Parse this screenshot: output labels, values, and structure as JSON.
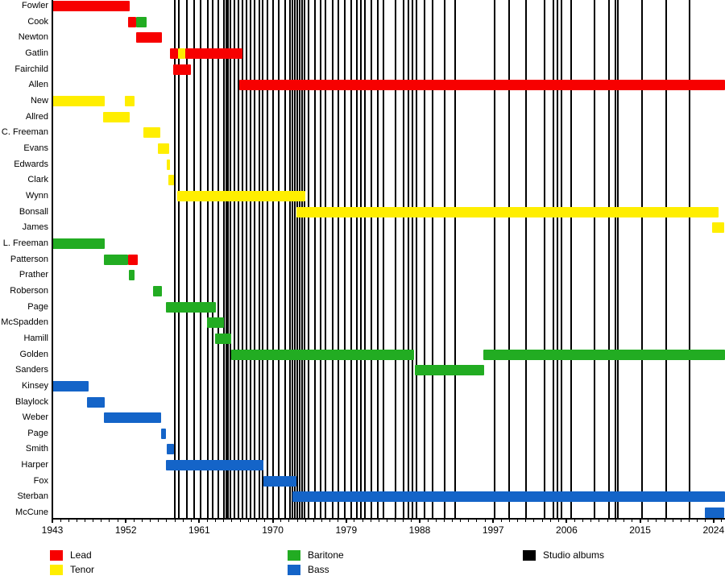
{
  "colors": {
    "lead": "#f70000",
    "tenor": "#ffee00",
    "baritone": "#22ac22",
    "bass": "#1464c8",
    "album": "#000000",
    "axis": "#000000"
  },
  "legend": {
    "items": [
      {
        "label": "Lead",
        "color_key": "lead",
        "col": 0,
        "row": 0
      },
      {
        "label": "Tenor",
        "color_key": "tenor",
        "col": 0,
        "row": 1
      },
      {
        "label": "Baritone",
        "color_key": "baritone",
        "col": 1,
        "row": 0
      },
      {
        "label": "Bass",
        "color_key": "bass",
        "col": 1,
        "row": 1
      },
      {
        "label": "Studio albums",
        "color_key": "album",
        "col": 2,
        "row": 0
      }
    ]
  },
  "chart_data": {
    "type": "timeline",
    "title": "",
    "xlabel": "",
    "ylabel": "",
    "axis": {
      "year_start": 1943,
      "year_end": 2025.4,
      "tick_interval": 1,
      "labeled_ticks": [
        1943,
        1952,
        1961,
        1970,
        1979,
        1988,
        1997,
        2006,
        2015,
        2024
      ]
    },
    "rows": [
      {
        "name": "Fowler",
        "segments": [
          {
            "start": 1943.0,
            "end": 1952.5,
            "part": "lead"
          }
        ]
      },
      {
        "name": "Cook",
        "segments": [
          {
            "start": 1952.3,
            "end": 1953.3,
            "part": "lead"
          },
          {
            "start": 1953.3,
            "end": 1954.5,
            "part": "baritone"
          }
        ]
      },
      {
        "name": "Newton",
        "segments": [
          {
            "start": 1953.3,
            "end": 1956.4,
            "part": "lead"
          }
        ]
      },
      {
        "name": "Gatlin",
        "segments": [
          {
            "start": 1957.4,
            "end": 1958.4,
            "part": "lead"
          },
          {
            "start": 1958.4,
            "end": 1959.3,
            "part": "tenor"
          },
          {
            "start": 1959.3,
            "end": 1966.3,
            "part": "lead"
          }
        ]
      },
      {
        "name": "Fairchild",
        "segments": [
          {
            "start": 1957.8,
            "end": 1960.0,
            "part": "lead"
          }
        ]
      },
      {
        "name": "Allen",
        "segments": [
          {
            "start": 1965.9,
            "end": 2025.4,
            "part": "lead"
          }
        ]
      },
      {
        "name": "New",
        "segments": [
          {
            "start": 1943.0,
            "end": 1949.4,
            "part": "tenor"
          },
          {
            "start": 1951.9,
            "end": 1953.1,
            "part": "tenor"
          }
        ]
      },
      {
        "name": "Allred",
        "segments": [
          {
            "start": 1949.2,
            "end": 1952.5,
            "part": "tenor"
          }
        ]
      },
      {
        "name": "C. Freeman",
        "segments": [
          {
            "start": 1954.2,
            "end": 1956.2,
            "part": "tenor"
          }
        ]
      },
      {
        "name": "Evans",
        "segments": [
          {
            "start": 1955.9,
            "end": 1957.3,
            "part": "tenor"
          }
        ]
      },
      {
        "name": "Edwards",
        "segments": [
          {
            "start": 1957.0,
            "end": 1957.4,
            "part": "tenor"
          }
        ]
      },
      {
        "name": "Clark",
        "segments": [
          {
            "start": 1957.2,
            "end": 1957.9,
            "part": "tenor"
          }
        ]
      },
      {
        "name": "Wynn",
        "segments": [
          {
            "start": 1958.3,
            "end": 1974.0,
            "part": "tenor"
          }
        ]
      },
      {
        "name": "Bonsall",
        "segments": [
          {
            "start": 1972.9,
            "end": 2024.6,
            "part": "tenor"
          }
        ]
      },
      {
        "name": "James",
        "segments": [
          {
            "start": 2023.8,
            "end": 2025.3,
            "part": "tenor"
          }
        ]
      },
      {
        "name": "L. Freeman",
        "segments": [
          {
            "start": 1943.0,
            "end": 1949.4,
            "part": "baritone"
          }
        ]
      },
      {
        "name": "Patterson",
        "segments": [
          {
            "start": 1949.3,
            "end": 1952.3,
            "part": "baritone"
          },
          {
            "start": 1952.3,
            "end": 1953.5,
            "part": "lead"
          }
        ]
      },
      {
        "name": "Prather",
        "segments": [
          {
            "start": 1952.4,
            "end": 1953.1,
            "part": "baritone"
          }
        ]
      },
      {
        "name": "Roberson",
        "segments": [
          {
            "start": 1955.3,
            "end": 1956.4,
            "part": "baritone"
          }
        ]
      },
      {
        "name": "Page",
        "segments": [
          {
            "start": 1956.9,
            "end": 1963.0,
            "part": "baritone"
          }
        ]
      },
      {
        "name": "McSpadden",
        "segments": [
          {
            "start": 1961.9,
            "end": 1964.0,
            "part": "baritone"
          }
        ]
      },
      {
        "name": "Hamill",
        "segments": [
          {
            "start": 1962.9,
            "end": 1964.9,
            "part": "baritone"
          }
        ]
      },
      {
        "name": "Golden",
        "segments": [
          {
            "start": 1964.9,
            "end": 1987.3,
            "part": "baritone"
          },
          {
            "start": 1995.8,
            "end": 2025.4,
            "part": "baritone"
          }
        ]
      },
      {
        "name": "Sanders",
        "segments": [
          {
            "start": 1987.4,
            "end": 1995.9,
            "part": "baritone"
          }
        ]
      },
      {
        "name": "Kinsey",
        "segments": [
          {
            "start": 1943.0,
            "end": 1947.4,
            "part": "bass"
          }
        ]
      },
      {
        "name": "Blaylock",
        "segments": [
          {
            "start": 1947.2,
            "end": 1949.4,
            "part": "bass"
          }
        ]
      },
      {
        "name": "Weber",
        "segments": [
          {
            "start": 1949.3,
            "end": 1956.3,
            "part": "bass"
          }
        ]
      },
      {
        "name": "Page",
        "segments": [
          {
            "start": 1956.3,
            "end": 1956.9,
            "part": "bass"
          }
        ]
      },
      {
        "name": "Smith",
        "segments": [
          {
            "start": 1957.0,
            "end": 1957.9,
            "part": "bass"
          }
        ]
      },
      {
        "name": "Harper",
        "segments": [
          {
            "start": 1956.9,
            "end": 1968.9,
            "part": "bass"
          }
        ]
      },
      {
        "name": "Fox",
        "segments": [
          {
            "start": 1968.9,
            "end": 1972.9,
            "part": "bass"
          }
        ]
      },
      {
        "name": "Sterban",
        "segments": [
          {
            "start": 1972.4,
            "end": 2025.4,
            "part": "bass"
          }
        ]
      },
      {
        "name": "McCune",
        "segments": [
          {
            "start": 2022.9,
            "end": 2025.3,
            "part": "bass"
          }
        ]
      }
    ],
    "albums": [
      1958.0,
      1958.5,
      1959.5,
      1960.4,
      1961.2,
      1962.0,
      1962.6,
      1963.3,
      1964.0,
      1964.3,
      1964.5,
      1964.8,
      1965.3,
      1965.8,
      1966.3,
      1966.8,
      1967.3,
      1967.8,
      1968.4,
      1968.8,
      1969.3,
      1970.0,
      1970.7,
      1971.5,
      1972.1,
      1972.4,
      1972.7,
      1973.0,
      1973.3,
      1973.6,
      1973.9,
      1974.4,
      1975.2,
      1975.9,
      1976.5,
      1977.3,
      1978.0,
      1978.8,
      1979.6,
      1980.3,
      1980.8,
      1981.3,
      1982.1,
      1982.9,
      1983.6,
      1985.0,
      1986.0,
      1986.6,
      1987.1,
      1987.6,
      1988.6,
      1989.6,
      1991.1,
      1992.3,
      1997.2,
      1999.0,
      2001.0,
      2003.3,
      2004.4,
      2004.9,
      2005.4,
      2006.6,
      2009.4,
      2011.2,
      2012.0,
      2012.3,
      2015.2,
      2018.2,
      2021.1
    ]
  }
}
